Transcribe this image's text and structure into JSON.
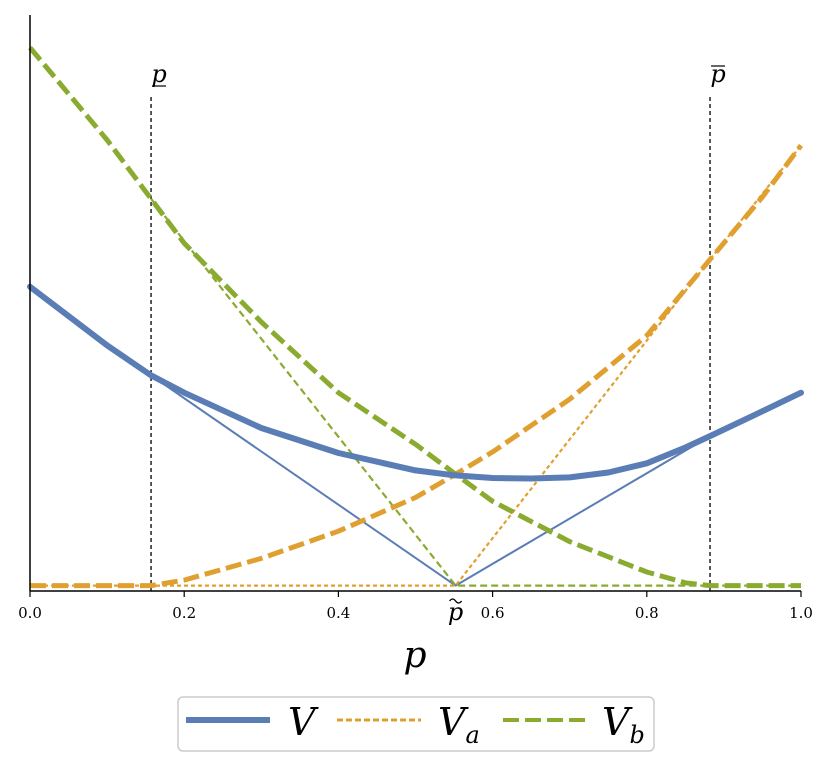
{
  "chart_data": {
    "type": "line",
    "title": "",
    "xlabel": "p",
    "ylabel": "",
    "xlim": [
      0.0,
      1.0
    ],
    "ylim": [
      -0.01,
      1.05
    ],
    "xticks": [
      0.0,
      0.2,
      0.4,
      0.6,
      0.8,
      1.0
    ],
    "xtick_labels": [
      "0.0",
      "0.2",
      "0.4",
      "0.6",
      "0.8",
      "1.0"
    ],
    "yticks_shown": false,
    "grid": false,
    "legend": {
      "placement": "bottom-center",
      "entries": [
        {
          "main": "V",
          "sub": ""
        },
        {
          "main": "V",
          "sub": "a"
        },
        {
          "main": "V",
          "sub": "b"
        }
      ]
    },
    "markers": [
      {
        "id": "p_low",
        "x": 0.157,
        "label": "p",
        "decoration": "underline"
      },
      {
        "id": "p_tilde",
        "x": 0.552,
        "label": "p",
        "decoration": "tilde"
      },
      {
        "id": "p_high",
        "x": 0.882,
        "label": "p",
        "decoration": "overline"
      }
    ],
    "series": [
      {
        "key": "V",
        "style": "solid-thick",
        "color": "#5a7db5",
        "x": [
          0.0,
          0.1,
          0.157,
          0.2,
          0.3,
          0.4,
          0.5,
          0.55,
          0.6,
          0.65,
          0.7,
          0.75,
          0.8,
          0.85,
          0.882,
          0.94,
          1.0
        ],
        "y": [
          0.55,
          0.442,
          0.387,
          0.355,
          0.29,
          0.244,
          0.212,
          0.203,
          0.198,
          0.197,
          0.199,
          0.208,
          0.225,
          0.254,
          0.275,
          0.314,
          0.355
        ]
      },
      {
        "key": "V_tangent",
        "style": "solid-thin",
        "color": "#5a7db5",
        "x": [
          0.157,
          0.552,
          0.882
        ],
        "y": [
          0.387,
          0.0,
          0.275
        ]
      },
      {
        "key": "Va",
        "style": "dashed-thick",
        "color": "#e0a030",
        "x": [
          0.0,
          0.1,
          0.157,
          0.2,
          0.3,
          0.4,
          0.5,
          0.552,
          0.6,
          0.7,
          0.8,
          0.882,
          0.95,
          1.0
        ],
        "y": [
          0.0,
          0.0,
          0.0,
          0.01,
          0.05,
          0.1,
          0.162,
          0.205,
          0.246,
          0.343,
          0.46,
          0.6,
          0.715,
          0.81
        ]
      },
      {
        "key": "Va_tangent",
        "style": "dotted-thin",
        "color": "#e0a030",
        "x": [
          0.0,
          0.552,
          0.882,
          1.0
        ],
        "y": [
          0.0,
          0.0,
          0.6,
          0.81
        ]
      },
      {
        "key": "Vb",
        "style": "dashed-thick",
        "color": "#8aab30",
        "x": [
          0.0,
          0.1,
          0.157,
          0.2,
          0.3,
          0.4,
          0.5,
          0.552,
          0.6,
          0.7,
          0.8,
          0.85,
          0.882,
          0.95,
          1.0
        ],
        "y": [
          0.99,
          0.82,
          0.712,
          0.63,
          0.485,
          0.355,
          0.26,
          0.205,
          0.155,
          0.081,
          0.025,
          0.005,
          0.0,
          0.0,
          0.0
        ]
      },
      {
        "key": "Vb_tangent",
        "style": "dashed-thin",
        "color": "#8aab30",
        "x": [
          0.157,
          0.552,
          1.0
        ],
        "y": [
          0.712,
          0.0,
          0.0
        ]
      }
    ]
  }
}
